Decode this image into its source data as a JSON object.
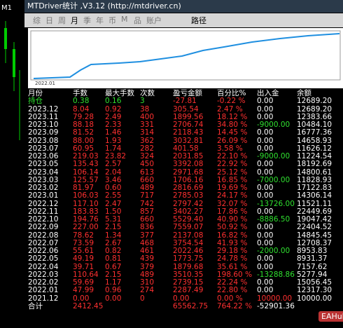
{
  "side_label": "M1",
  "window": {
    "title": "MTDriver统计 ,V3.12 (http://mtdriver.cn)",
    "tabs": [
      "综",
      "日",
      "周",
      "月",
      "季",
      "年",
      "币",
      "M",
      "品",
      "账户"
    ],
    "path_button": "路径",
    "chart_label": "2022.01"
  },
  "table": {
    "columns": [
      "月份",
      "手数",
      "最大手数",
      "次数",
      "盈亏金额",
      "百分比%",
      "出入金",
      "余额"
    ],
    "rows": [
      [
        "持仓",
        "0.38",
        "0.16",
        "3",
        "-27.81",
        "-0.22 %",
        "0.00",
        "12689.20"
      ],
      [
        "2023.12",
        "8.04",
        "0.92",
        "38",
        "305.54",
        "2.47 %",
        "0.00",
        "12689.20"
      ],
      [
        "2023.11",
        "79.28",
        "2.49",
        "400",
        "1899.56",
        "18.12 %",
        "0.00",
        "12383.66"
      ],
      [
        "2023.10",
        "88.18",
        "2.33",
        "331",
        "2706.74",
        "34.80 %",
        "-9000.00",
        "10484.10"
      ],
      [
        "2023.09",
        "81.52",
        "1.46",
        "314",
        "2118.43",
        "14.45 %",
        "0.00",
        "16777.36"
      ],
      [
        "2023.08",
        "88.00",
        "1.93",
        "362",
        "3032.81",
        "26.09 %",
        "0.00",
        "14658.93"
      ],
      [
        "2023.07",
        "60.95",
        "1.74",
        "282",
        "401.58",
        "3.58 %",
        "0.00",
        "11626.12"
      ],
      [
        "2023.06",
        "219.03",
        "23.82",
        "324",
        "2031.85",
        "22.10 %",
        "-9000.00",
        "11224.54"
      ],
      [
        "2023.05",
        "135.43",
        "2.57",
        "450",
        "3392.08",
        "22.92 %",
        "0.00",
        "18192.69"
      ],
      [
        "2023.04",
        "106.14",
        "2.04",
        "613",
        "2971.68",
        "25.12 %",
        "0.00",
        "14800.61"
      ],
      [
        "2023.03",
        "125.57",
        "3.46",
        "660",
        "1706.16",
        "16.85 %",
        "-7000.00",
        "11828.93"
      ],
      [
        "2023.02",
        "81.97",
        "0.60",
        "489",
        "2816.69",
        "19.69 %",
        "0.00",
        "17122.83"
      ],
      [
        "2023.01",
        "106.03",
        "2.55",
        "717",
        "2785.03",
        "24.17 %",
        "0.00",
        "14306.14"
      ],
      [
        "2022.12",
        "117.10",
        "2.47",
        "742",
        "2797.42",
        "32.07 %",
        "-13726.00",
        "11521.11"
      ],
      [
        "2022.11",
        "183.83",
        "1.50",
        "857",
        "3402.27",
        "17.86 %",
        "0.00",
        "22449.69"
      ],
      [
        "2022.10",
        "194.76",
        "5.31",
        "660",
        "5529.40",
        "40.90 %",
        "-8886.50",
        "19047.42"
      ],
      [
        "2022.09",
        "227.00",
        "2.15",
        "836",
        "7559.07",
        "50.92 %",
        "0.00",
        "22404.52"
      ],
      [
        "2022.08",
        "78.62",
        "1.34",
        "377",
        "2137.08",
        "16.82 %",
        "0.00",
        "14845.45"
      ],
      [
        "2022.07",
        "73.59",
        "2.67",
        "468",
        "3754.54",
        "41.93 %",
        "0.00",
        "12708.37"
      ],
      [
        "2022.06",
        "55.61",
        "0.82",
        "461",
        "2022.46",
        "29.18 %",
        "-2000.00",
        "8953.83"
      ],
      [
        "2022.05",
        "49.19",
        "0.81",
        "439",
        "1773.75",
        "24.78 %",
        "0.00",
        "8931.37"
      ],
      [
        "2022.04",
        "39.71",
        "0.67",
        "379",
        "1879.68",
        "35.61 %",
        "0.00",
        "7157.62"
      ],
      [
        "2022.03",
        "110.64",
        "2.15",
        "489",
        "3510.35",
        "198.60 %",
        "-13288.86",
        "5277.94"
      ],
      [
        "2022.02",
        "59.69",
        "1.17",
        "310",
        "2739.15",
        "22.24 %",
        "0.00",
        "15056.45"
      ],
      [
        "2022.01",
        "47.99",
        "0.96",
        "274",
        "2287.49",
        "22.80 %",
        "0.00",
        "12317.30"
      ],
      [
        "2021.12",
        "0.00",
        "0.00",
        "0",
        "0.00",
        "0.00 %",
        "10000.00",
        "10000.00"
      ]
    ],
    "total": {
      "label": "合计",
      "lots": "2412.45",
      "profit": "65562.75",
      "percent": "764.22 %",
      "deposit": "-52901.36"
    }
  },
  "watermark": "EAHub"
}
